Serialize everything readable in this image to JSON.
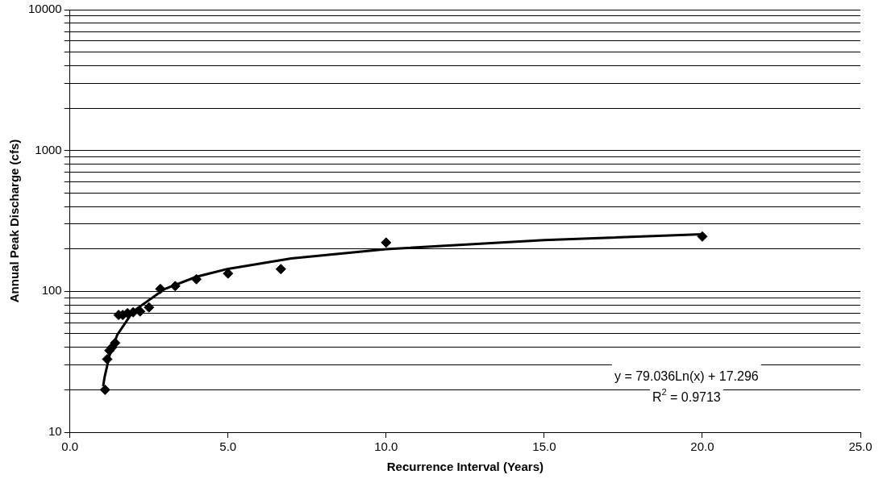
{
  "chart_data": {
    "type": "scatter",
    "xlabel": "Recurrence Interval (Years)",
    "ylabel": "Annual Peak Discharge (cfs)",
    "xlim": [
      0,
      25
    ],
    "xticks": [
      {
        "value": 0,
        "label": "0.0"
      },
      {
        "value": 5,
        "label": "5.0"
      },
      {
        "value": 10,
        "label": "10.0"
      },
      {
        "value": 15,
        "label": "15.0"
      },
      {
        "value": 20,
        "label": "20.0"
      },
      {
        "value": 25,
        "label": "25.0"
      }
    ],
    "ylim": [
      10,
      10000
    ],
    "yticks": [
      10,
      {
        "value": 20,
        "label": null
      },
      {
        "value": 30,
        "label": null
      },
      {
        "value": 40,
        "label": null
      },
      {
        "value": 50,
        "label": null
      },
      {
        "value": 60,
        "label": null
      },
      {
        "value": 70,
        "label": null
      },
      {
        "value": 80,
        "label": null
      },
      {
        "value": 90,
        "label": null
      },
      100,
      {
        "value": 200,
        "label": null
      },
      {
        "value": 300,
        "label": null
      },
      {
        "value": 400,
        "label": null
      },
      {
        "value": 500,
        "label": null
      },
      {
        "value": 600,
        "label": null
      },
      {
        "value": 700,
        "label": null
      },
      {
        "value": 800,
        "label": null
      },
      {
        "value": 900,
        "label": null
      },
      1000,
      {
        "value": 2000,
        "label": null
      },
      {
        "value": 3000,
        "label": null
      },
      {
        "value": 4000,
        "label": null
      },
      {
        "value": 5000,
        "label": null
      },
      {
        "value": 6000,
        "label": null
      },
      {
        "value": 7000,
        "label": null
      },
      {
        "value": 8000,
        "label": null
      },
      {
        "value": 9000,
        "label": null
      },
      10000
    ],
    "log": "y",
    "grid": "y",
    "legend": false,
    "series": [
      {
        "color": "#000000",
        "marker": "diamond",
        "x": [
          1.11,
          1.18,
          1.25,
          1.33,
          1.43,
          1.54,
          1.67,
          1.82,
          2.0,
          2.22,
          2.5,
          2.86,
          3.33,
          4.0,
          5.0,
          6.67,
          10.0,
          20.0
        ],
        "values": [
          20,
          33,
          38,
          40,
          43,
          68,
          68,
          70,
          71,
          72,
          77,
          104,
          109,
          122,
          134,
          144,
          222,
          245
        ]
      },
      {
        "type": "line",
        "color": "#000000",
        "marker": "none",
        "line_style": "solid",
        "x": [
          1.05,
          1.1,
          1.25,
          1.5,
          2,
          3,
          4,
          5,
          7,
          10,
          15,
          20
        ],
        "values": [
          21.2,
          24.8,
          34.9,
          49.3,
          72.1,
          104.1,
          126.9,
          144.5,
          171.1,
          199.3,
          231.3,
          254.1
        ]
      }
    ],
    "annotations": [
      "y = 79.036Ln(x) + 17.296",
      "R$^{2}$ = 0.9713"
    ]
  }
}
